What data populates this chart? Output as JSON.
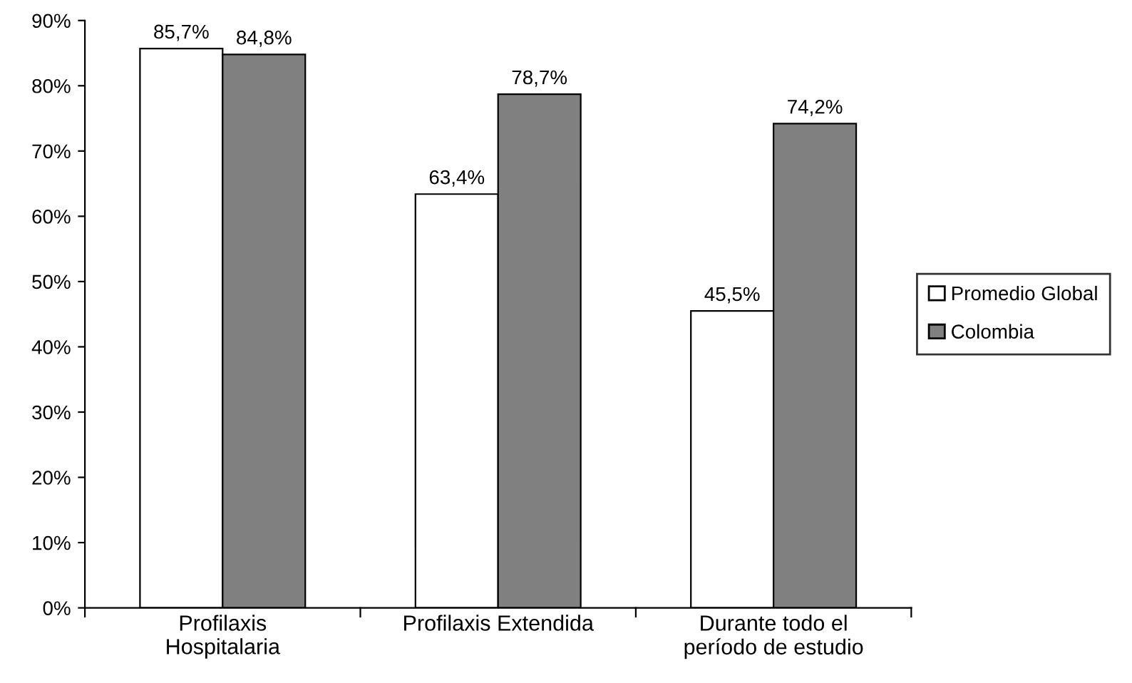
{
  "chart_data": {
    "type": "bar",
    "categories": [
      "Profilaxis\nHospitalaria",
      "Profilaxis Extendida",
      "Durante todo el\nperíodo de estudio"
    ],
    "series": [
      {
        "name": "Promedio Global",
        "color": "#ffffff",
        "values": [
          85.7,
          63.4,
          45.5
        ],
        "value_labels": [
          "85,7%",
          "63,4%",
          "45,5%"
        ]
      },
      {
        "name": "Colombia",
        "color": "#808080",
        "values": [
          84.8,
          78.7,
          74.2
        ],
        "value_labels": [
          "84,8%",
          "78,7%",
          "74,2%"
        ]
      }
    ],
    "ylim": [
      0,
      90
    ],
    "yticks": [
      {
        "value": 0,
        "label": "0%"
      },
      {
        "value": 10,
        "label": "10%"
      },
      {
        "value": 20,
        "label": "20%"
      },
      {
        "value": 30,
        "label": "30%"
      },
      {
        "value": 40,
        "label": "40%"
      },
      {
        "value": 50,
        "label": "50%"
      },
      {
        "value": 60,
        "label": "60%"
      },
      {
        "value": 70,
        "label": "70%"
      },
      {
        "value": 80,
        "label": "80%"
      },
      {
        "value": 90,
        "label": "90%"
      }
    ],
    "grid": false,
    "legend": "right"
  }
}
